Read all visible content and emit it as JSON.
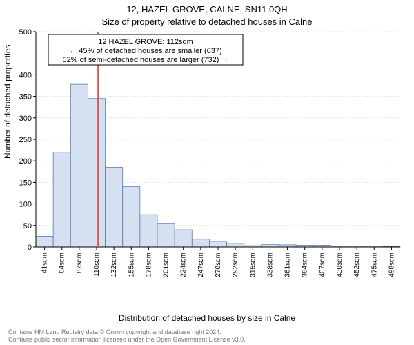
{
  "title_main": "12, HAZEL GROVE, CALNE, SN11 0QH",
  "title_sub": "Size of property relative to detached houses in Calne",
  "ylabel": "Number of detached properties",
  "xlabel": "Distribution of detached houses by size in Calne",
  "footer_line1": "Contains HM Land Registry data © Crown copyright and database right 2024.",
  "footer_line2": "Contains public sector information licensed under the Open Government Licence v3.0.",
  "annotation": {
    "line1": "12 HAZEL GROVE: 112sqm",
    "line2": "← 45% of detached houses are smaller (637)",
    "line3": "52% of semi-detached houses are larger (732) →"
  },
  "chart": {
    "type": "histogram",
    "ylim": [
      0,
      500
    ],
    "yticks": [
      0,
      50,
      100,
      150,
      200,
      250,
      300,
      350,
      400,
      500
    ],
    "xticks": [
      "41sqm",
      "64sqm",
      "87sqm",
      "110sqm",
      "132sqm",
      "155sqm",
      "178sqm",
      "201sqm",
      "224sqm",
      "247sqm",
      "270sqm",
      "292sqm",
      "315sqm",
      "338sqm",
      "361sqm",
      "384sqm",
      "407sqm",
      "430sqm",
      "452sqm",
      "475sqm",
      "498sqm"
    ],
    "bar_values": [
      25,
      220,
      378,
      345,
      185,
      140,
      75,
      55,
      40,
      18,
      13,
      8,
      3,
      6,
      5,
      4,
      4,
      2,
      2,
      2,
      1
    ],
    "reference_x": 112,
    "x_range": [
      30,
      510
    ],
    "bar_color": "#d5e0f1",
    "bar_stroke": "#5b7bb0",
    "ref_color": "#d9534f",
    "grid_color": "#cccccc",
    "background": "#ffffff",
    "title_fontsize": 13,
    "label_fontsize": 12,
    "tick_fontsize": 11
  }
}
